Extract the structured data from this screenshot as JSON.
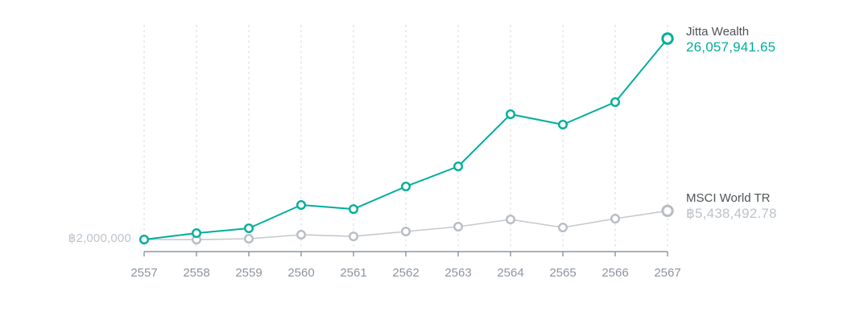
{
  "chart_data": {
    "type": "line",
    "categories": [
      "2557",
      "2558",
      "2559",
      "2560",
      "2561",
      "2562",
      "2563",
      "2564",
      "2565",
      "2566",
      "2567"
    ],
    "series": [
      {
        "name": "Jitta Wealth",
        "end_label": "26,057,941.65",
        "color": "#00ae9c",
        "marker_color": "#00ae9c",
        "values": [
          2000000,
          2770000,
          3350000,
          6140000,
          5650000,
          8350000,
          10760000,
          17000000,
          15760000,
          18460000,
          26057941.65
        ]
      },
      {
        "name": "MSCI World TR",
        "end_label": "฿5,438,492.78",
        "color": "#c5c9cd",
        "marker_color": "#b7bdc3",
        "values": [
          2000000,
          1990000,
          2100000,
          2580000,
          2380000,
          2960000,
          3540000,
          4410000,
          3440000,
          4500000,
          5438492.78
        ]
      }
    ],
    "baseline_label": "฿2,000,000",
    "title": "",
    "xlabel": "",
    "ylabel": "",
    "ylim": [
      2000000,
      26057941.65
    ],
    "grid": "vertical-dashed",
    "legend_position": "right-of-line-ends",
    "colors": {
      "grid": "#e4e5e6",
      "axis": "#8b95a1",
      "tick_label": "#8b95a1",
      "series_name_label": "#4d5357",
      "muted_value_label": "#bcc3ca",
      "accent": "#00ae9c",
      "background": "#ffffff"
    }
  }
}
